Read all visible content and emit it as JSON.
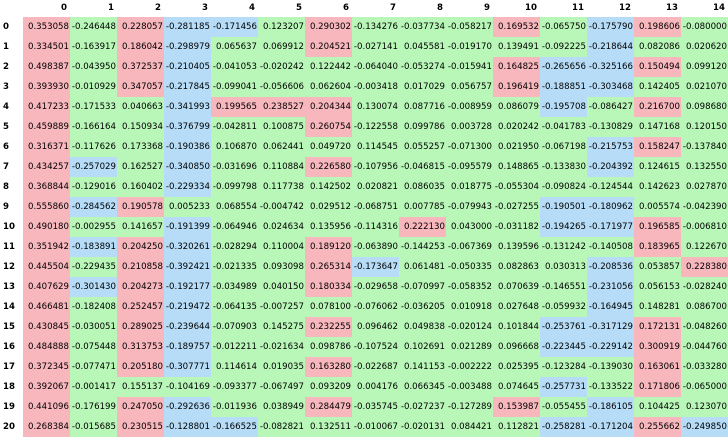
{
  "columns": [
    "0",
    "1",
    "2",
    "3",
    "4",
    "5",
    "6",
    "7",
    "8",
    "9",
    "10",
    "11",
    "12",
    "13",
    "14"
  ],
  "legend": {
    "r": "#f8b6bd",
    "b": "#b6dcf8",
    "g": "#b9f7b9"
  },
  "rows": [
    {
      "label": "0",
      "cells": [
        [
          "0.353058",
          "r"
        ],
        [
          "-0.246448",
          "g"
        ],
        [
          "0.228057",
          "r"
        ],
        [
          "-0.281185",
          "b"
        ],
        [
          "-0.171456",
          "b"
        ],
        [
          "0.123207",
          "g"
        ],
        [
          "0.290302",
          "r"
        ],
        [
          "-0.134276",
          "g"
        ],
        [
          "-0.037734",
          "g"
        ],
        [
          "-0.058217",
          "g"
        ],
        [
          "0.169532",
          "r"
        ],
        [
          "-0.065750",
          "g"
        ],
        [
          "-0.175790",
          "b"
        ],
        [
          "0.198606",
          "r"
        ],
        [
          "-0.080000",
          "g"
        ]
      ]
    },
    {
      "label": "1",
      "cells": [
        [
          "0.334501",
          "r"
        ],
        [
          "-0.163917",
          "g"
        ],
        [
          "0.186042",
          "r"
        ],
        [
          "-0.298979",
          "b"
        ],
        [
          "0.065637",
          "g"
        ],
        [
          "0.069912",
          "g"
        ],
        [
          "0.204521",
          "r"
        ],
        [
          "-0.027141",
          "g"
        ],
        [
          "0.045581",
          "g"
        ],
        [
          "-0.019170",
          "g"
        ],
        [
          "0.139491",
          "g"
        ],
        [
          "-0.092225",
          "g"
        ],
        [
          "-0.218644",
          "b"
        ],
        [
          "0.082086",
          "g"
        ],
        [
          "0.020620",
          "g"
        ]
      ]
    },
    {
      "label": "2",
      "cells": [
        [
          "0.498387",
          "r"
        ],
        [
          "-0.043950",
          "g"
        ],
        [
          "0.372537",
          "r"
        ],
        [
          "-0.210405",
          "b"
        ],
        [
          "-0.041053",
          "g"
        ],
        [
          "-0.020242",
          "g"
        ],
        [
          "0.122442",
          "g"
        ],
        [
          "-0.064040",
          "g"
        ],
        [
          "-0.053274",
          "g"
        ],
        [
          "-0.015941",
          "g"
        ],
        [
          "0.164825",
          "r"
        ],
        [
          "-0.265656",
          "b"
        ],
        [
          "-0.325166",
          "b"
        ],
        [
          "0.150494",
          "r"
        ],
        [
          "0.099120",
          "g"
        ]
      ]
    },
    {
      "label": "3",
      "cells": [
        [
          "0.393930",
          "r"
        ],
        [
          "-0.010929",
          "g"
        ],
        [
          "0.347057",
          "r"
        ],
        [
          "-0.217845",
          "b"
        ],
        [
          "-0.099041",
          "g"
        ],
        [
          "-0.056606",
          "g"
        ],
        [
          "0.062604",
          "g"
        ],
        [
          "-0.003418",
          "g"
        ],
        [
          "0.017029",
          "g"
        ],
        [
          "0.056757",
          "g"
        ],
        [
          "0.196419",
          "r"
        ],
        [
          "-0.188851",
          "b"
        ],
        [
          "-0.303468",
          "b"
        ],
        [
          "0.142405",
          "g"
        ],
        [
          "0.021070",
          "g"
        ]
      ]
    },
    {
      "label": "4",
      "cells": [
        [
          "0.417233",
          "r"
        ],
        [
          "-0.171533",
          "g"
        ],
        [
          "0.040663",
          "g"
        ],
        [
          "-0.341993",
          "b"
        ],
        [
          "0.199565",
          "r"
        ],
        [
          "0.238527",
          "r"
        ],
        [
          "0.204344",
          "r"
        ],
        [
          "0.130074",
          "g"
        ],
        [
          "0.087716",
          "g"
        ],
        [
          "-0.008959",
          "g"
        ],
        [
          "0.086079",
          "g"
        ],
        [
          "-0.195708",
          "b"
        ],
        [
          "-0.086427",
          "g"
        ],
        [
          "0.216700",
          "r"
        ],
        [
          "0.098680",
          "g"
        ]
      ]
    },
    {
      "label": "5",
      "cells": [
        [
          "0.459889",
          "r"
        ],
        [
          "-0.166164",
          "g"
        ],
        [
          "0.150934",
          "g"
        ],
        [
          "-0.376799",
          "b"
        ],
        [
          "-0.042811",
          "g"
        ],
        [
          "0.100875",
          "g"
        ],
        [
          "0.260754",
          "r"
        ],
        [
          "-0.122558",
          "g"
        ],
        [
          "0.099786",
          "g"
        ],
        [
          "0.003728",
          "g"
        ],
        [
          "0.020242",
          "g"
        ],
        [
          "-0.041783",
          "g"
        ],
        [
          "-0.130829",
          "g"
        ],
        [
          "0.147168",
          "g"
        ],
        [
          "0.120150",
          "g"
        ]
      ]
    },
    {
      "label": "6",
      "cells": [
        [
          "0.316371",
          "r"
        ],
        [
          "-0.117626",
          "g"
        ],
        [
          "0.173368",
          "g"
        ],
        [
          "-0.190386",
          "b"
        ],
        [
          "0.106870",
          "g"
        ],
        [
          "0.062441",
          "g"
        ],
        [
          "0.049720",
          "g"
        ],
        [
          "0.114545",
          "g"
        ],
        [
          "0.055257",
          "g"
        ],
        [
          "-0.071300",
          "g"
        ],
        [
          "0.021950",
          "g"
        ],
        [
          "-0.067198",
          "g"
        ],
        [
          "-0.215753",
          "b"
        ],
        [
          "0.158247",
          "r"
        ],
        [
          "-0.137840",
          "g"
        ]
      ]
    },
    {
      "label": "7",
      "cells": [
        [
          "0.434257",
          "r"
        ],
        [
          "-0.257029",
          "b"
        ],
        [
          "0.162527",
          "g"
        ],
        [
          "-0.340850",
          "b"
        ],
        [
          "-0.031696",
          "g"
        ],
        [
          "0.110884",
          "g"
        ],
        [
          "0.226580",
          "r"
        ],
        [
          "-0.107956",
          "g"
        ],
        [
          "-0.046815",
          "g"
        ],
        [
          "-0.095579",
          "g"
        ],
        [
          "0.148865",
          "g"
        ],
        [
          "-0.133830",
          "g"
        ],
        [
          "-0.204392",
          "b"
        ],
        [
          "0.124615",
          "g"
        ],
        [
          "0.132550",
          "g"
        ]
      ]
    },
    {
      "label": "8",
      "cells": [
        [
          "0.368844",
          "r"
        ],
        [
          "-0.129016",
          "g"
        ],
        [
          "0.160402",
          "g"
        ],
        [
          "-0.229334",
          "b"
        ],
        [
          "-0.099798",
          "g"
        ],
        [
          "0.117738",
          "g"
        ],
        [
          "0.142502",
          "g"
        ],
        [
          "0.020821",
          "g"
        ],
        [
          "0.086035",
          "g"
        ],
        [
          "0.018775",
          "g"
        ],
        [
          "-0.055304",
          "g"
        ],
        [
          "-0.090824",
          "g"
        ],
        [
          "-0.124544",
          "g"
        ],
        [
          "0.142623",
          "g"
        ],
        [
          "0.027870",
          "g"
        ]
      ]
    },
    {
      "label": "9",
      "cells": [
        [
          "0.555860",
          "r"
        ],
        [
          "-0.284562",
          "b"
        ],
        [
          "0.190578",
          "r"
        ],
        [
          "0.005233",
          "g"
        ],
        [
          "0.068554",
          "g"
        ],
        [
          "-0.004742",
          "g"
        ],
        [
          "0.029512",
          "g"
        ],
        [
          "-0.068751",
          "g"
        ],
        [
          "0.007785",
          "g"
        ],
        [
          "-0.079943",
          "g"
        ],
        [
          "-0.027255",
          "g"
        ],
        [
          "-0.190501",
          "b"
        ],
        [
          "-0.180962",
          "b"
        ],
        [
          "0.005574",
          "g"
        ],
        [
          "-0.042390",
          "g"
        ]
      ]
    },
    {
      "label": "10",
      "cells": [
        [
          "0.490180",
          "r"
        ],
        [
          "-0.002955",
          "g"
        ],
        [
          "0.141657",
          "g"
        ],
        [
          "-0.191399",
          "b"
        ],
        [
          "-0.064946",
          "g"
        ],
        [
          "0.024634",
          "g"
        ],
        [
          "0.135956",
          "g"
        ],
        [
          "-0.114316",
          "g"
        ],
        [
          "0.222130",
          "r"
        ],
        [
          "0.043000",
          "g"
        ],
        [
          "-0.031182",
          "g"
        ],
        [
          "-0.194265",
          "b"
        ],
        [
          "-0.171977",
          "b"
        ],
        [
          "0.196585",
          "r"
        ],
        [
          "-0.006810",
          "g"
        ]
      ]
    },
    {
      "label": "11",
      "cells": [
        [
          "0.351942",
          "r"
        ],
        [
          "-0.183891",
          "b"
        ],
        [
          "0.204250",
          "r"
        ],
        [
          "-0.320261",
          "b"
        ],
        [
          "-0.028294",
          "g"
        ],
        [
          "0.110004",
          "g"
        ],
        [
          "0.189120",
          "r"
        ],
        [
          "-0.063890",
          "g"
        ],
        [
          "-0.144253",
          "g"
        ],
        [
          "-0.067369",
          "g"
        ],
        [
          "0.139596",
          "g"
        ],
        [
          "-0.131242",
          "g"
        ],
        [
          "-0.140508",
          "g"
        ],
        [
          "0.183965",
          "r"
        ],
        [
          "0.122670",
          "g"
        ]
      ]
    },
    {
      "label": "12",
      "cells": [
        [
          "0.445504",
          "r"
        ],
        [
          "-0.229435",
          "g"
        ],
        [
          "0.210858",
          "r"
        ],
        [
          "-0.392421",
          "b"
        ],
        [
          "-0.021335",
          "g"
        ],
        [
          "0.093098",
          "g"
        ],
        [
          "0.265314",
          "r"
        ],
        [
          "-0.173647",
          "b"
        ],
        [
          "0.061481",
          "g"
        ],
        [
          "-0.050335",
          "g"
        ],
        [
          "0.082863",
          "g"
        ],
        [
          "0.030313",
          "g"
        ],
        [
          "-0.208536",
          "b"
        ],
        [
          "0.053857",
          "g"
        ],
        [
          "0.228380",
          "r"
        ]
      ]
    },
    {
      "label": "13",
      "cells": [
        [
          "0.407629",
          "r"
        ],
        [
          "-0.301430",
          "b"
        ],
        [
          "0.204273",
          "r"
        ],
        [
          "-0.192177",
          "b"
        ],
        [
          "-0.034989",
          "g"
        ],
        [
          "0.040150",
          "g"
        ],
        [
          "0.180334",
          "r"
        ],
        [
          "-0.029658",
          "g"
        ],
        [
          "-0.070997",
          "g"
        ],
        [
          "-0.058352",
          "g"
        ],
        [
          "0.070639",
          "g"
        ],
        [
          "-0.146551",
          "g"
        ],
        [
          "-0.231056",
          "b"
        ],
        [
          "0.056153",
          "g"
        ],
        [
          "-0.028240",
          "g"
        ]
      ]
    },
    {
      "label": "14",
      "cells": [
        [
          "0.466481",
          "r"
        ],
        [
          "-0.182408",
          "g"
        ],
        [
          "0.252457",
          "r"
        ],
        [
          "-0.219472",
          "b"
        ],
        [
          "-0.064135",
          "g"
        ],
        [
          "-0.007257",
          "g"
        ],
        [
          "0.078100",
          "g"
        ],
        [
          "-0.076062",
          "g"
        ],
        [
          "-0.036205",
          "g"
        ],
        [
          "0.010918",
          "g"
        ],
        [
          "0.027648",
          "g"
        ],
        [
          "-0.059932",
          "g"
        ],
        [
          "-0.164945",
          "b"
        ],
        [
          "0.148281",
          "g"
        ],
        [
          "0.086700",
          "g"
        ]
      ]
    },
    {
      "label": "15",
      "cells": [
        [
          "0.430845",
          "r"
        ],
        [
          "-0.030051",
          "g"
        ],
        [
          "0.289025",
          "r"
        ],
        [
          "-0.239644",
          "b"
        ],
        [
          "-0.070903",
          "g"
        ],
        [
          "0.145275",
          "g"
        ],
        [
          "0.232255",
          "r"
        ],
        [
          "0.096462",
          "g"
        ],
        [
          "0.049838",
          "g"
        ],
        [
          "-0.020124",
          "g"
        ],
        [
          "0.101844",
          "g"
        ],
        [
          "-0.253761",
          "b"
        ],
        [
          "-0.317129",
          "b"
        ],
        [
          "0.172131",
          "r"
        ],
        [
          "-0.048260",
          "g"
        ]
      ]
    },
    {
      "label": "16",
      "cells": [
        [
          "0.484888",
          "r"
        ],
        [
          "-0.075448",
          "g"
        ],
        [
          "0.313753",
          "r"
        ],
        [
          "-0.189757",
          "b"
        ],
        [
          "-0.012211",
          "g"
        ],
        [
          "-0.021634",
          "g"
        ],
        [
          "0.098786",
          "g"
        ],
        [
          "-0.107524",
          "g"
        ],
        [
          "0.102691",
          "g"
        ],
        [
          "0.021289",
          "g"
        ],
        [
          "0.096668",
          "g"
        ],
        [
          "-0.223445",
          "b"
        ],
        [
          "-0.229142",
          "b"
        ],
        [
          "0.300919",
          "r"
        ],
        [
          "-0.044760",
          "g"
        ]
      ]
    },
    {
      "label": "17",
      "cells": [
        [
          "0.372345",
          "r"
        ],
        [
          "-0.077471",
          "g"
        ],
        [
          "0.205180",
          "r"
        ],
        [
          "-0.307771",
          "b"
        ],
        [
          "0.114614",
          "g"
        ],
        [
          "0.019035",
          "g"
        ],
        [
          "0.163280",
          "r"
        ],
        [
          "-0.022687",
          "g"
        ],
        [
          "0.141153",
          "g"
        ],
        [
          "-0.002222",
          "g"
        ],
        [
          "0.025395",
          "g"
        ],
        [
          "-0.123284",
          "g"
        ],
        [
          "-0.139030",
          "g"
        ],
        [
          "0.163061",
          "r"
        ],
        [
          "-0.033280",
          "g"
        ]
      ]
    },
    {
      "label": "18",
      "cells": [
        [
          "0.392067",
          "r"
        ],
        [
          "-0.001417",
          "g"
        ],
        [
          "0.155137",
          "g"
        ],
        [
          "-0.104169",
          "g"
        ],
        [
          "-0.093377",
          "g"
        ],
        [
          "-0.067497",
          "g"
        ],
        [
          "0.093209",
          "g"
        ],
        [
          "0.004176",
          "g"
        ],
        [
          "0.066345",
          "g"
        ],
        [
          "-0.003488",
          "g"
        ],
        [
          "0.074645",
          "g"
        ],
        [
          "-0.257731",
          "b"
        ],
        [
          "-0.133522",
          "g"
        ],
        [
          "0.171806",
          "r"
        ],
        [
          "-0.065000",
          "g"
        ]
      ]
    },
    {
      "label": "19",
      "cells": [
        [
          "0.441096",
          "r"
        ],
        [
          "-0.176199",
          "g"
        ],
        [
          "0.247050",
          "r"
        ],
        [
          "-0.292636",
          "b"
        ],
        [
          "-0.011936",
          "g"
        ],
        [
          "0.038949",
          "g"
        ],
        [
          "0.284479",
          "r"
        ],
        [
          "-0.035745",
          "g"
        ],
        [
          "-0.027237",
          "g"
        ],
        [
          "-0.127289",
          "g"
        ],
        [
          "0.153987",
          "r"
        ],
        [
          "-0.055455",
          "g"
        ],
        [
          "-0.186105",
          "b"
        ],
        [
          "0.104425",
          "g"
        ],
        [
          "0.123070",
          "g"
        ]
      ]
    },
    {
      "label": "20",
      "cells": [
        [
          "0.268384",
          "r"
        ],
        [
          "-0.015685",
          "g"
        ],
        [
          "0.230515",
          "r"
        ],
        [
          "-0.128801",
          "b"
        ],
        [
          "-0.166525",
          "b"
        ],
        [
          "-0.082821",
          "g"
        ],
        [
          "0.132511",
          "g"
        ],
        [
          "-0.010067",
          "g"
        ],
        [
          "-0.020131",
          "g"
        ],
        [
          "0.084421",
          "g"
        ],
        [
          "0.112821",
          "g"
        ],
        [
          "-0.258281",
          "b"
        ],
        [
          "-0.171204",
          "b"
        ],
        [
          "0.255662",
          "r"
        ],
        [
          "-0.249850",
          "b"
        ]
      ]
    }
  ]
}
